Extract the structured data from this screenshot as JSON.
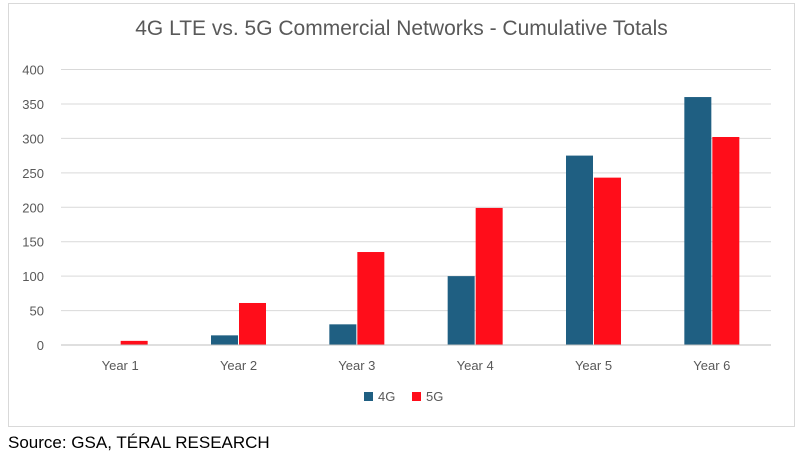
{
  "chart_data": {
    "type": "bar",
    "title": "4G LTE vs. 5G Commercial Networks - Cumulative Totals",
    "categories": [
      "Year 1",
      "Year 2",
      "Year 3",
      "Year 4",
      "Year 5",
      "Year 6"
    ],
    "series": [
      {
        "name": "4G",
        "color": "#1f5f82",
        "values": [
          0,
          14,
          30,
          100,
          275,
          360
        ]
      },
      {
        "name": "5G",
        "color": "#ff0d1a",
        "values": [
          6,
          61,
          135,
          199,
          243,
          302
        ]
      }
    ],
    "ylim": [
      0,
      400
    ],
    "yticks": [
      0,
      50,
      100,
      150,
      200,
      250,
      300,
      350,
      400
    ],
    "grid": true,
    "legend_position": "bottom-center"
  },
  "source_text": "Source: GSA, TÉRAL RESEARCH"
}
